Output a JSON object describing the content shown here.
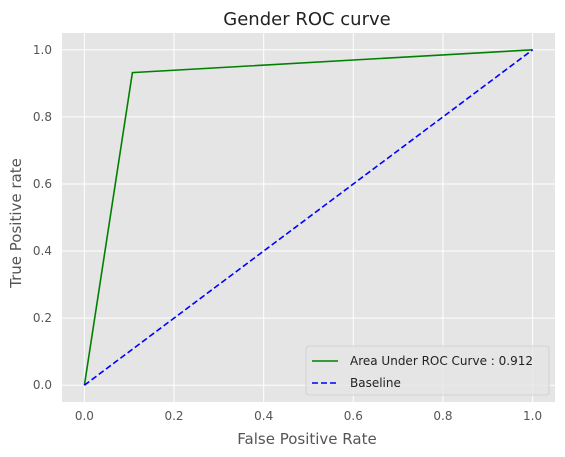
{
  "chart_data": {
    "type": "line",
    "title": "Gender ROC curve",
    "xlabel": "False Positive Rate",
    "ylabel": "True Positive rate",
    "xlim": [
      -0.05,
      1.05
    ],
    "ylim": [
      -0.05,
      1.05
    ],
    "xticks": [
      0.0,
      0.2,
      0.4,
      0.6,
      0.8,
      1.0
    ],
    "xtick_labels": [
      "0.0",
      "0.2",
      "0.4",
      "0.6",
      "0.8",
      "1.0"
    ],
    "yticks": [
      0.0,
      0.2,
      0.4,
      0.6,
      0.8,
      1.0
    ],
    "ytick_labels": [
      "0.0",
      "0.2",
      "0.4",
      "0.6",
      "0.8",
      "1.0"
    ],
    "grid": true,
    "legend_position": "bottom-right",
    "series": [
      {
        "name": "Area Under ROC Curve : 0.912",
        "x": [
          0.0,
          0.107,
          1.0
        ],
        "y": [
          0.0,
          0.932,
          1.0
        ],
        "color": "#008000",
        "style": "solid"
      },
      {
        "name": "Baseline",
        "x": [
          0.0,
          1.0
        ],
        "y": [
          0.0,
          1.0
        ],
        "color": "#0000ff",
        "style": "dashed"
      }
    ]
  },
  "colors": {
    "plot_background": "#e5e5e5",
    "grid": "#ffffff"
  }
}
